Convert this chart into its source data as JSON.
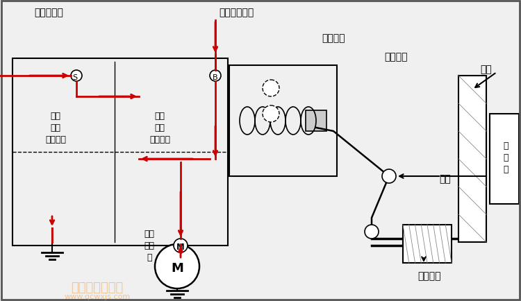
{
  "bg_color": "#f0f0f0",
  "border_color": "#000000",
  "red_color": "#cc0000",
  "gray_color": "#888888",
  "dark_color": "#222222",
  "labels": {
    "top_left": "接起动开关",
    "top_mid": "接蓄电池正极",
    "em_switch": "电磁开关",
    "return_spring": "复位弹簧",
    "hold_coil": "保持\n线圈\n（并联）",
    "attract_coil": "吸引\n线圈\n（串联）",
    "dc_motor": "直流\n电动\n机",
    "flywheel": "飞轮",
    "engine": "发\n动\n机",
    "fork": "拨叉",
    "drive_gear": "驱动齿轮",
    "watermark1": "汽车维修技术网",
    "watermark2": "www.qcwxjs.com"
  },
  "S_label": "S",
  "B_label": "B",
  "M_label": "M"
}
